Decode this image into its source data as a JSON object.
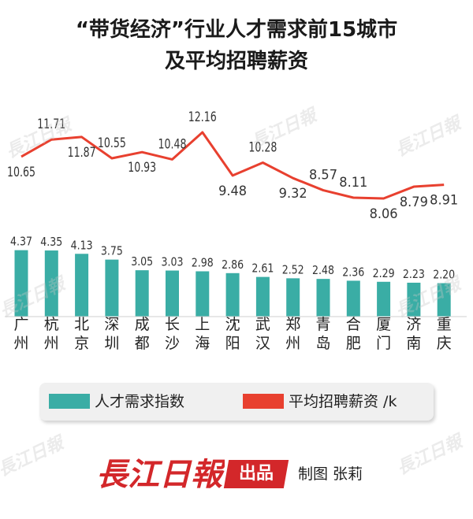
{
  "header": {
    "title_line1": "“带货经济”行业人才需求前15城市",
    "title_line2": "及平均招聘薪资"
  },
  "chart_data": {
    "type": "bar",
    "categories": [
      "广州",
      "杭州",
      "北京",
      "深圳",
      "成都",
      "长沙",
      "上海",
      "沈阳",
      "武汉",
      "郑州",
      "青岛",
      "合肥",
      "厦门",
      "济南",
      "重庆"
    ],
    "series": [
      {
        "name": "人才需求指数",
        "type": "bar",
        "color": "#3aada5",
        "values": [
          4.37,
          4.35,
          4.13,
          3.75,
          3.05,
          3.03,
          2.98,
          2.86,
          2.61,
          2.52,
          2.48,
          2.36,
          2.29,
          2.23,
          2.2
        ],
        "labels": [
          "4.37",
          "4.35",
          "4.13",
          "3.75",
          "3.05",
          "3.03",
          "2.98",
          "2.86",
          "2.61",
          "2.52",
          "2.48",
          "2.36",
          "2.29",
          "2.23",
          "2.20"
        ]
      },
      {
        "name": "平均招聘薪资 /k",
        "type": "line",
        "color": "#e8402f",
        "values": [
          10.65,
          11.71,
          11.87,
          10.55,
          10.93,
          10.48,
          12.16,
          9.48,
          10.28,
          9.32,
          8.57,
          8.11,
          8.06,
          8.79,
          8.91
        ],
        "labels": [
          "10.65",
          "11.71",
          "11.87",
          "10.55",
          "10.93",
          "10.48",
          "12.16",
          "9.48",
          "10.28",
          "9.32",
          "8.57",
          "8.11",
          "8.06",
          "8.79",
          "8.91"
        ]
      }
    ],
    "title": "“带货经济”行业人才需求前15城市及平均招聘薪资",
    "xlabel": "",
    "ylabel": "",
    "grid": false,
    "legend_position": "bottom"
  },
  "legend": {
    "bars_label": "人才需求指数",
    "line_label": "平均招聘薪资 /k"
  },
  "footer": {
    "logo_text": "長江日報",
    "tag": "出品",
    "credit": "制图 张莉"
  },
  "watermark": {
    "text": "長江日報"
  }
}
